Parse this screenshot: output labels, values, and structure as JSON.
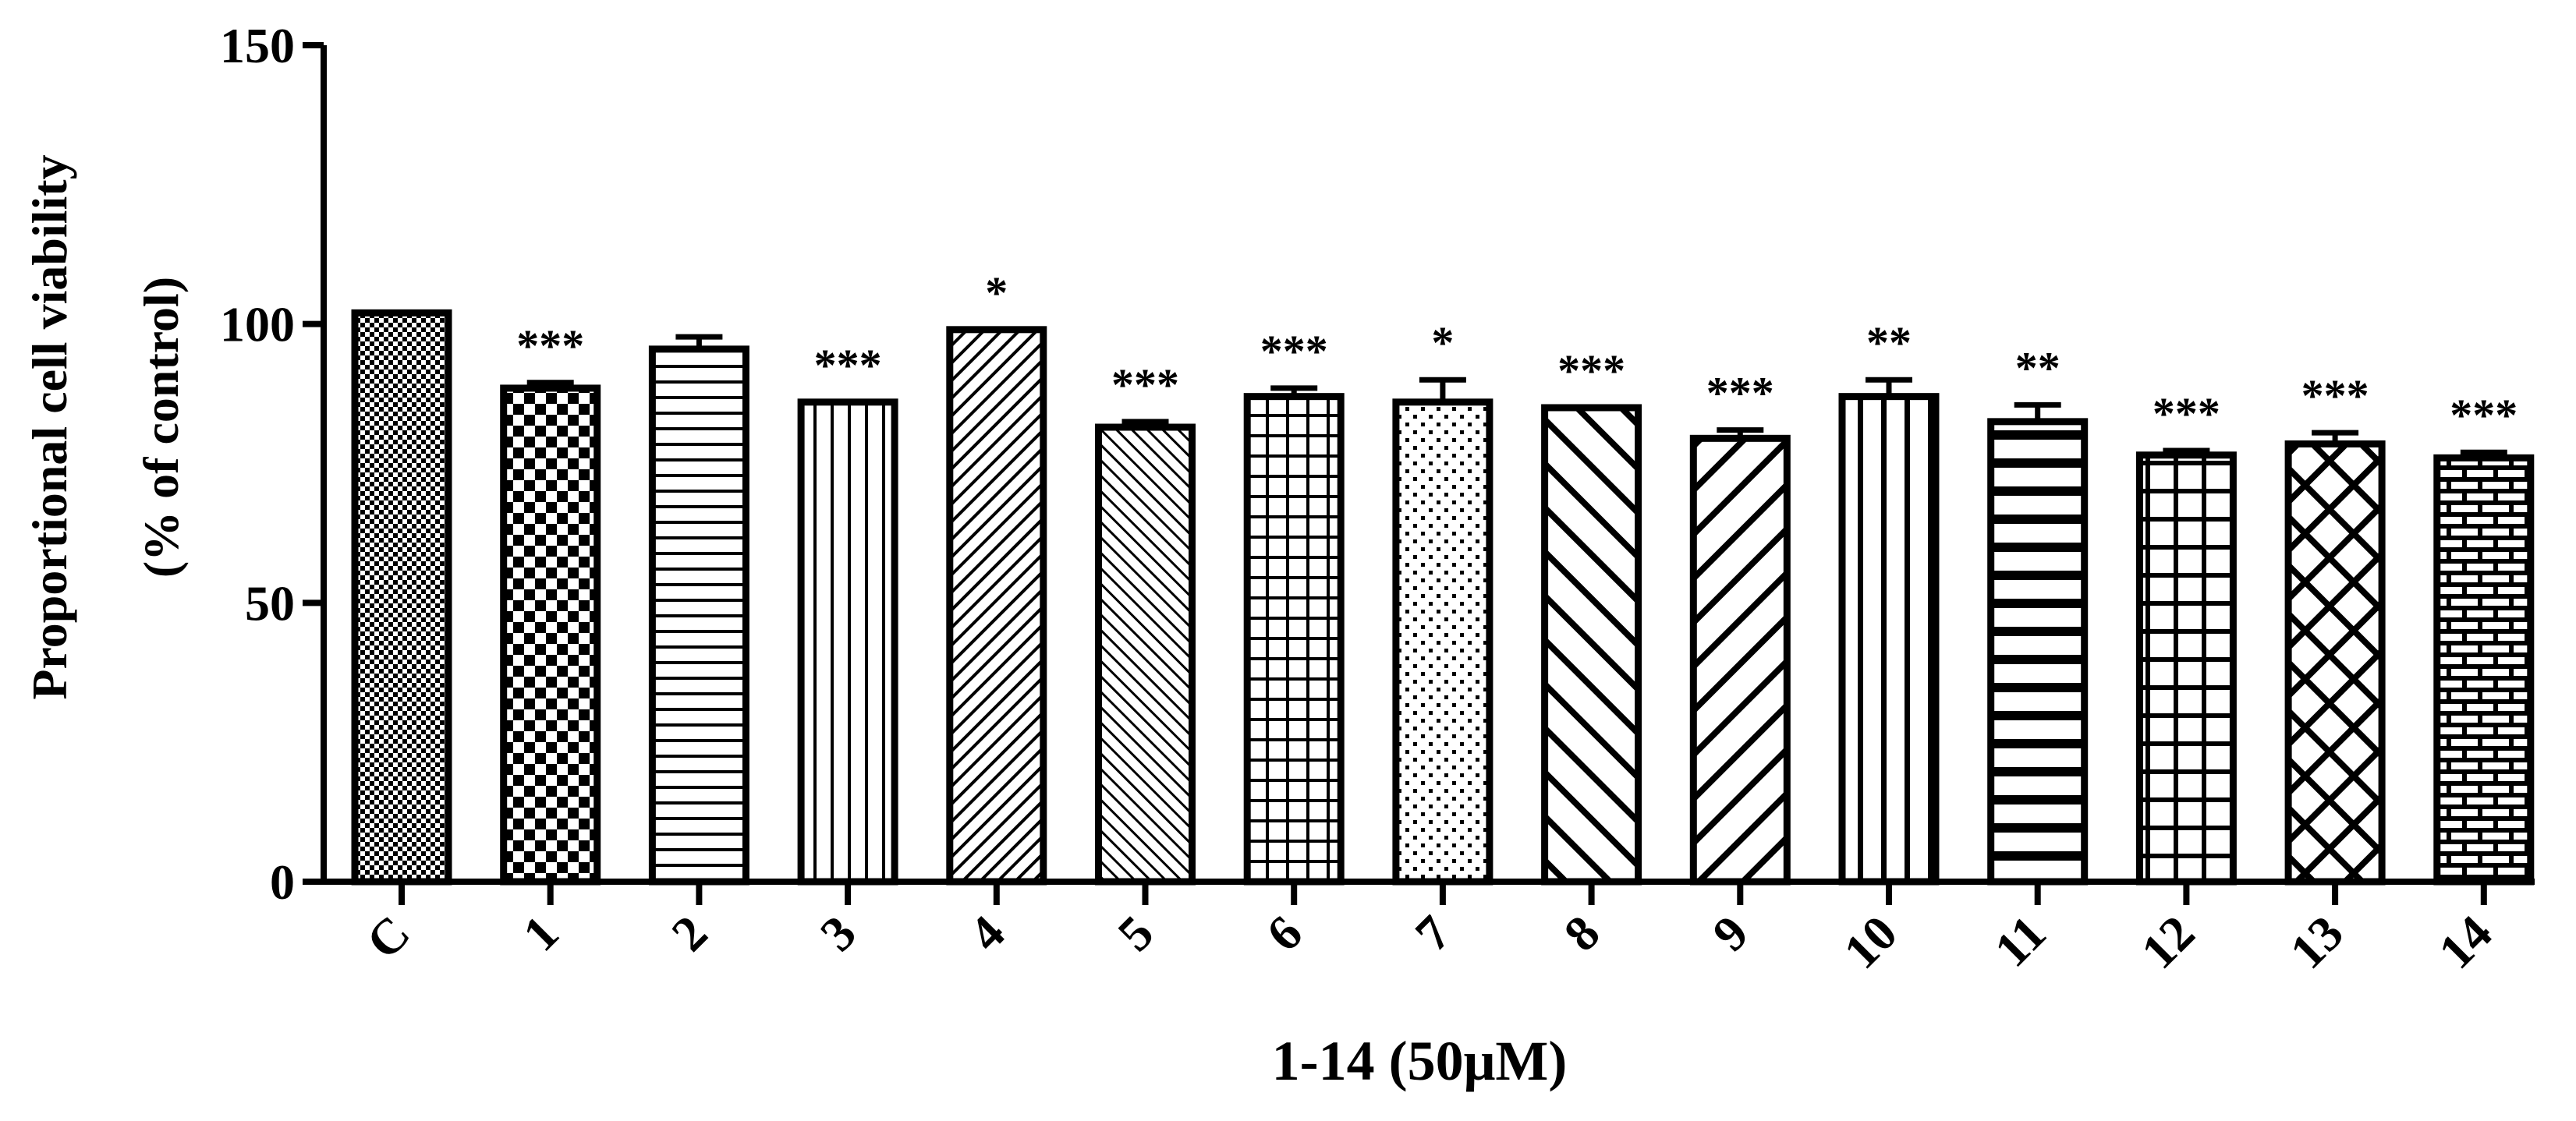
{
  "chart_data": {
    "type": "bar",
    "title": "",
    "xlabel": "1-14 (50μM)",
    "ylabel_line1": "Proportional cell viability",
    "ylabel_line2": "(% of control)",
    "ylim": [
      0,
      150
    ],
    "yticks": [
      "0",
      "50",
      "100",
      "150"
    ],
    "categories": [
      "C",
      "1",
      "2",
      "3",
      "4",
      "5",
      "6",
      "7",
      "8",
      "9",
      "10",
      "11",
      "12",
      "13",
      "14"
    ],
    "values": [
      102,
      88.5,
      95.5,
      86,
      99,
      81.5,
      87,
      86,
      85,
      79.5,
      87,
      82.5,
      76.5,
      78.5,
      76
    ],
    "errors": [
      0,
      1.0,
      2.2,
      0,
      0,
      1.0,
      1.5,
      4.0,
      0,
      1.5,
      3.0,
      3.0,
      0.8,
      2.0,
      1.0
    ],
    "significance": [
      "",
      "***",
      "",
      "***",
      "*",
      "***",
      "***",
      "*",
      "***",
      "***",
      "**",
      "**",
      "***",
      "***",
      "***"
    ],
    "patterns": [
      "dots-dense",
      "checker",
      "hstripes",
      "vstripes",
      "diag-fine",
      "diag-back-fine",
      "grid",
      "dots-sparse",
      "diag-back-wide",
      "diag-wide",
      "vstripes-wide",
      "hstripes-thick",
      "grid-wide",
      "crosshatch",
      "brick"
    ],
    "grid": false,
    "legend": "none",
    "colors": {
      "ink": "#000000",
      "background": "#ffffff"
    }
  }
}
